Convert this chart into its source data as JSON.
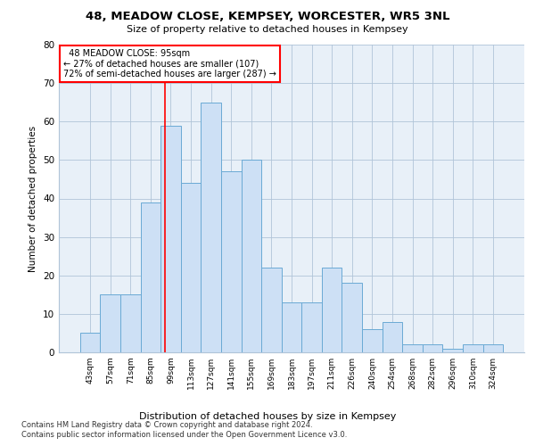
{
  "title": "48, MEADOW CLOSE, KEMPSEY, WORCESTER, WR5 3NL",
  "subtitle": "Size of property relative to detached houses in Kempsey",
  "xlabel": "Distribution of detached houses by size in Kempsey",
  "ylabel": "Number of detached properties",
  "footnote1": "Contains HM Land Registry data © Crown copyright and database right 2024.",
  "footnote2": "Contains public sector information licensed under the Open Government Licence v3.0.",
  "bar_labels": [
    "43sqm",
    "57sqm",
    "71sqm",
    "85sqm",
    "99sqm",
    "113sqm",
    "127sqm",
    "141sqm",
    "155sqm",
    "169sqm",
    "183sqm",
    "197sqm",
    "211sqm",
    "226sqm",
    "240sqm",
    "254sqm",
    "268sqm",
    "282sqm",
    "296sqm",
    "310sqm",
    "324sqm"
  ],
  "bar_heights": [
    5,
    15,
    15,
    39,
    59,
    44,
    65,
    47,
    50,
    22,
    13,
    13,
    22,
    18,
    6,
    8,
    2,
    2,
    1,
    2,
    2
  ],
  "bar_color": "#cde0f5",
  "bar_edge_color": "#6aaad4",
  "vline_color": "red",
  "annotation_title": "48 MEADOW CLOSE: 95sqm",
  "annotation_line1": "← 27% of detached houses are smaller (107)",
  "annotation_line2": "72% of semi-detached houses are larger (287) →",
  "annotation_box_color": "white",
  "annotation_box_edge_color": "red",
  "ylim": [
    0,
    80
  ],
  "yticks": [
    0,
    10,
    20,
    30,
    40,
    50,
    60,
    70,
    80
  ],
  "bg_color": "white",
  "plot_bg_color": "#e8f0f8",
  "grid_color": "#b0c4d8"
}
